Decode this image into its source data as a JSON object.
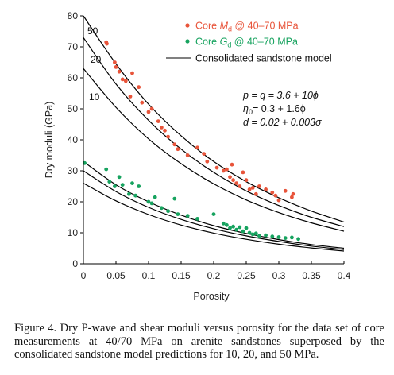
{
  "chart_data": {
    "type": "scatter",
    "xlabel": "Porosity",
    "ylabel": "Dry moduli (GPa)",
    "xlim": [
      0,
      0.4
    ],
    "ylim": [
      0,
      80
    ],
    "xticks": [
      0,
      0.05,
      0.1,
      0.15,
      0.2,
      0.25,
      0.3,
      0.35,
      0.4
    ],
    "xtick_labels": [
      "0",
      "0.05",
      "0.1",
      "0.15",
      "0.2",
      "0.25",
      "0.3",
      "0.35",
      "0.4"
    ],
    "yticks": [
      0,
      10,
      20,
      30,
      40,
      50,
      60,
      70,
      80
    ],
    "ytick_labels": [
      "0",
      "10",
      "20",
      "30",
      "40",
      "50",
      "60",
      "70",
      "80"
    ],
    "grid": false,
    "legend_position": "top-right",
    "legend": [
      {
        "label_prefix": "Core ",
        "label_symbol": "M",
        "label_sub": "d",
        "label_suffix": " @ 40–70 MPa",
        "color": "#e8543a",
        "marker": "dot"
      },
      {
        "label_prefix": "Core ",
        "label_symbol": "G",
        "label_sub": "d",
        "label_suffix": " @ 40–70 MPa",
        "color": "#17a35f",
        "marker": "dot"
      },
      {
        "label_prefix": "Consolidated  sandstone model",
        "label_symbol": "",
        "label_sub": "",
        "label_suffix": "",
        "color": "#000000",
        "marker": "line"
      }
    ],
    "annotations": {
      "line1": "p = q = 3.6 + 10ϕ",
      "line2_main": "η",
      "line2_sub": "0",
      "line2_rest": "= 0.3 + 1.6ϕ",
      "line3": "d = 0.02 + 0.003σ"
    },
    "series": [
      {
        "name": "Core Md @ 40–70 MPa",
        "color": "#e8543a",
        "points": [
          [
            0.035,
            71.5
          ],
          [
            0.036,
            71
          ],
          [
            0.048,
            65
          ],
          [
            0.05,
            63.5
          ],
          [
            0.055,
            62
          ],
          [
            0.06,
            59.5
          ],
          [
            0.065,
            59
          ],
          [
            0.072,
            54
          ],
          [
            0.075,
            61.5
          ],
          [
            0.085,
            57
          ],
          [
            0.09,
            52
          ],
          [
            0.1,
            49
          ],
          [
            0.105,
            50
          ],
          [
            0.115,
            46
          ],
          [
            0.12,
            44
          ],
          [
            0.125,
            43
          ],
          [
            0.13,
            41
          ],
          [
            0.14,
            38.5
          ],
          [
            0.145,
            37
          ],
          [
            0.16,
            35
          ],
          [
            0.175,
            37.5
          ],
          [
            0.185,
            35.5
          ],
          [
            0.19,
            33
          ],
          [
            0.205,
            31
          ],
          [
            0.215,
            30
          ],
          [
            0.22,
            30.5
          ],
          [
            0.225,
            28
          ],
          [
            0.228,
            32
          ],
          [
            0.23,
            27
          ],
          [
            0.235,
            26
          ],
          [
            0.24,
            25
          ],
          [
            0.245,
            29.5
          ],
          [
            0.25,
            27
          ],
          [
            0.255,
            24
          ],
          [
            0.26,
            24.5
          ],
          [
            0.265,
            22.5
          ],
          [
            0.27,
            25
          ],
          [
            0.28,
            24
          ],
          [
            0.29,
            23
          ],
          [
            0.295,
            22
          ],
          [
            0.3,
            20.5
          ],
          [
            0.31,
            23.5
          ],
          [
            0.32,
            21.5
          ],
          [
            0.322,
            22.5
          ]
        ]
      },
      {
        "name": "Core Gd @ 40–70 MPa",
        "color": "#17a35f",
        "points": [
          [
            0.002,
            32.5
          ],
          [
            0.035,
            30.5
          ],
          [
            0.04,
            26.5
          ],
          [
            0.048,
            25
          ],
          [
            0.055,
            28
          ],
          [
            0.06,
            25.5
          ],
          [
            0.07,
            22.5
          ],
          [
            0.075,
            26
          ],
          [
            0.08,
            22
          ],
          [
            0.085,
            25
          ],
          [
            0.1,
            20
          ],
          [
            0.105,
            19.5
          ],
          [
            0.11,
            21.5
          ],
          [
            0.12,
            18
          ],
          [
            0.13,
            17
          ],
          [
            0.14,
            21
          ],
          [
            0.145,
            16
          ],
          [
            0.16,
            15.5
          ],
          [
            0.175,
            14.5
          ],
          [
            0.2,
            16
          ],
          [
            0.215,
            13
          ],
          [
            0.22,
            12.5
          ],
          [
            0.225,
            11.5
          ],
          [
            0.23,
            12
          ],
          [
            0.235,
            11
          ],
          [
            0.24,
            11.8
          ],
          [
            0.245,
            10.5
          ],
          [
            0.25,
            11.5
          ],
          [
            0.255,
            10
          ],
          [
            0.26,
            9.5
          ],
          [
            0.265,
            9.8
          ],
          [
            0.27,
            9
          ],
          [
            0.28,
            9.2
          ],
          [
            0.29,
            8.8
          ],
          [
            0.3,
            8.6
          ],
          [
            0.31,
            8.3
          ],
          [
            0.32,
            8.5
          ],
          [
            0.33,
            8
          ]
        ]
      },
      {
        "name": "Consolidated sandstone model",
        "color": "#000000",
        "curves": [
          {
            "label": "50",
            "modulus": "M",
            "x": [
              0,
              0.05,
              0.1,
              0.15,
              0.2,
              0.25,
              0.3,
              0.35,
              0.4
            ],
            "y": [
              80,
              64.5,
              51.5,
              41.3,
              33,
              26.5,
              21.3,
              17,
              13.5
            ]
          },
          {
            "label": "20",
            "modulus": "M",
            "x": [
              0,
              0.05,
              0.1,
              0.15,
              0.2,
              0.25,
              0.3,
              0.35,
              0.4
            ],
            "y": [
              73,
              58,
              46.3,
              37,
              29.5,
              23.5,
              18.8,
              15,
              12
            ]
          },
          {
            "label": "10",
            "modulus": "M",
            "x": [
              0,
              0.05,
              0.1,
              0.15,
              0.2,
              0.25,
              0.3,
              0.35,
              0.4
            ],
            "y": [
              63,
              50.5,
              40.3,
              32.3,
              25.8,
              20.6,
              16.5,
              13.2,
              10.5
            ]
          },
          {
            "label": "",
            "modulus": "G",
            "x": [
              0,
              0.05,
              0.1,
              0.15,
              0.2,
              0.25,
              0.3,
              0.35,
              0.4
            ],
            "y": [
              33,
              25.5,
              20,
              15.7,
              12.3,
              9.8,
              7.8,
              6.2,
              5
            ]
          },
          {
            "label": "",
            "modulus": "G",
            "x": [
              0,
              0.05,
              0.1,
              0.15,
              0.2,
              0.25,
              0.3,
              0.35,
              0.4
            ],
            "y": [
              30,
              23.3,
              18.2,
              14.3,
              11.3,
              9,
              7.2,
              5.7,
              4.6
            ]
          },
          {
            "label": "",
            "modulus": "G",
            "x": [
              0,
              0.05,
              0.1,
              0.15,
              0.2,
              0.25,
              0.3,
              0.35,
              0.4
            ],
            "y": [
              26,
              20.3,
              15.9,
              12.5,
              9.9,
              7.9,
              6.3,
              5.1,
              4.1
            ]
          }
        ]
      }
    ]
  },
  "caption": "Figure 4. Dry P-wave and shear moduli versus porosity for the data set of core measurements at 40/70 MPa on arenite sandstones superposed by the consolidated sandstone model predictions for 10, 20, and 50 MPa."
}
